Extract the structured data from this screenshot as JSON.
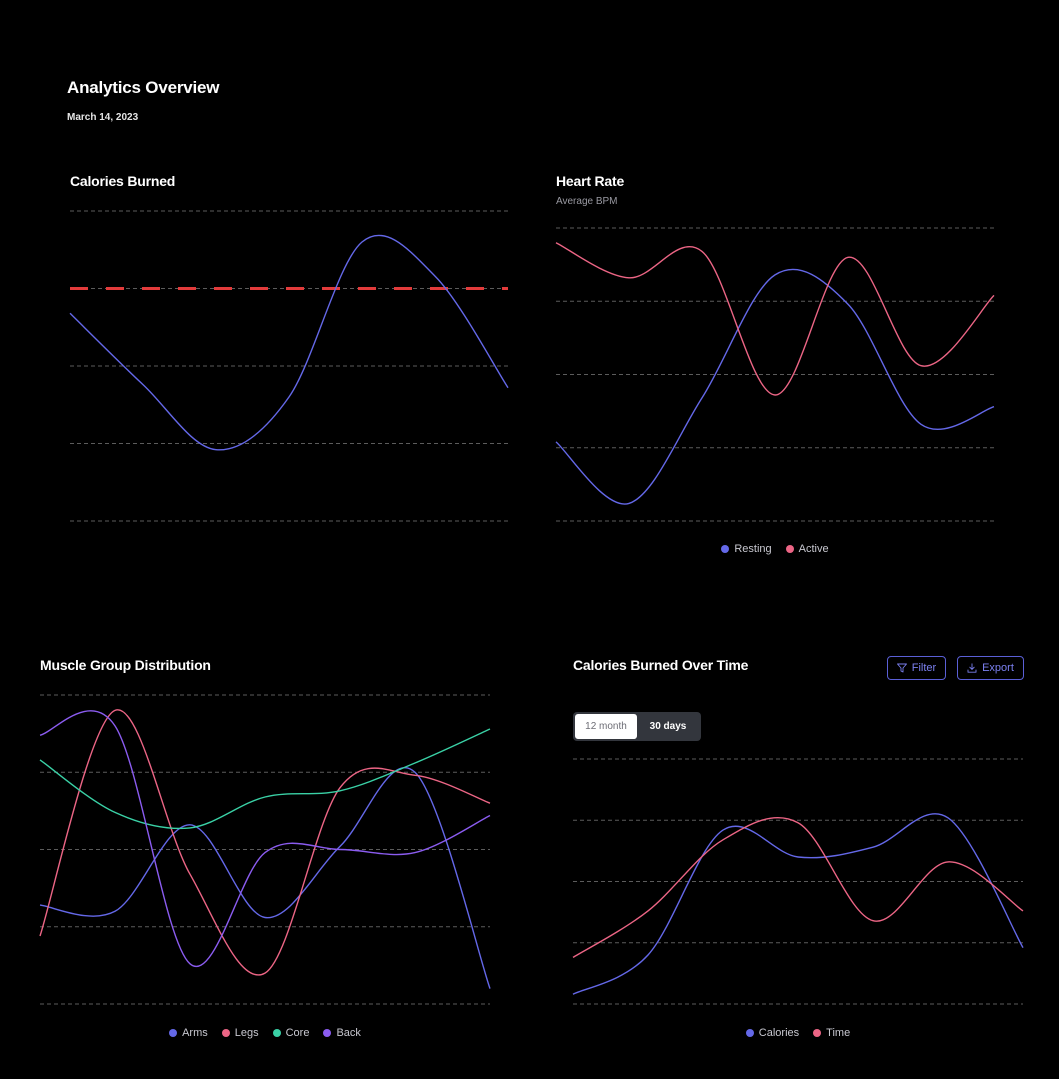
{
  "header": {
    "title": "Analytics Overview",
    "date": "March 14, 2023"
  },
  "colors": {
    "blue": "#6468e8",
    "pink": "#ec6585",
    "teal": "#3ad1a6",
    "purple": "#8b5cf0",
    "reference": "#e23b3b",
    "grid": "#5c5c5c"
  },
  "controls": {
    "filter_label": "Filter",
    "export_label": "Export",
    "filter_icon": "funnel-icon",
    "export_icon": "download-icon",
    "range_options": [
      "12 month",
      "30 days"
    ],
    "range_selected": "12 month"
  },
  "chart_data": [
    {
      "id": "calories",
      "type": "line",
      "title": "Calories Burned",
      "ylim": [
        0,
        100
      ],
      "grid": true,
      "reference_line": 75,
      "x": [
        0,
        1,
        2,
        3,
        4,
        5,
        6
      ],
      "series": [
        {
          "values": [
            67,
            44,
            23,
            40,
            90,
            79,
            43
          ]
        }
      ]
    },
    {
      "id": "heart",
      "type": "line",
      "title": "Heart Rate",
      "subtitle": "Average BPM",
      "ylim": [
        0,
        100
      ],
      "grid": true,
      "legend_position": "bottom",
      "x": [
        0,
        1,
        2,
        3,
        4,
        5,
        6
      ],
      "series": [
        {
          "name": "Resting",
          "values": [
            27,
            6,
            42,
            84,
            74,
            33,
            39
          ]
        },
        {
          "name": "Active",
          "values": [
            95,
            83,
            92,
            43,
            90,
            53,
            77
          ]
        }
      ]
    },
    {
      "id": "muscle",
      "type": "line",
      "title": "Muscle Group Distribution",
      "ylim": [
        0,
        100
      ],
      "grid": true,
      "legend_position": "bottom",
      "x": [
        0,
        1,
        2,
        3,
        4,
        5,
        6
      ],
      "series": [
        {
          "name": "Arms",
          "values": [
            32,
            30,
            58,
            28,
            51,
            75,
            5
          ]
        },
        {
          "name": "Legs",
          "values": [
            22,
            95,
            42,
            10,
            70,
            74,
            65
          ]
        },
        {
          "name": "Core",
          "values": [
            79,
            62,
            57,
            67,
            69,
            78,
            89
          ]
        },
        {
          "name": "Back",
          "values": [
            87,
            90,
            13,
            49,
            50,
            49,
            61
          ]
        }
      ]
    },
    {
      "id": "overtime",
      "type": "line",
      "title": "Calories Burned Over Time",
      "ylim": [
        0,
        100
      ],
      "grid": true,
      "legend_position": "bottom",
      "x": [
        0,
        1,
        2,
        3,
        4,
        5,
        6
      ],
      "series": [
        {
          "name": "Calories",
          "values": [
            4,
            20,
            71,
            60,
            64,
            76,
            23
          ]
        },
        {
          "name": "Time",
          "values": [
            19,
            38,
            67,
            74,
            34,
            58,
            38
          ]
        }
      ]
    }
  ]
}
